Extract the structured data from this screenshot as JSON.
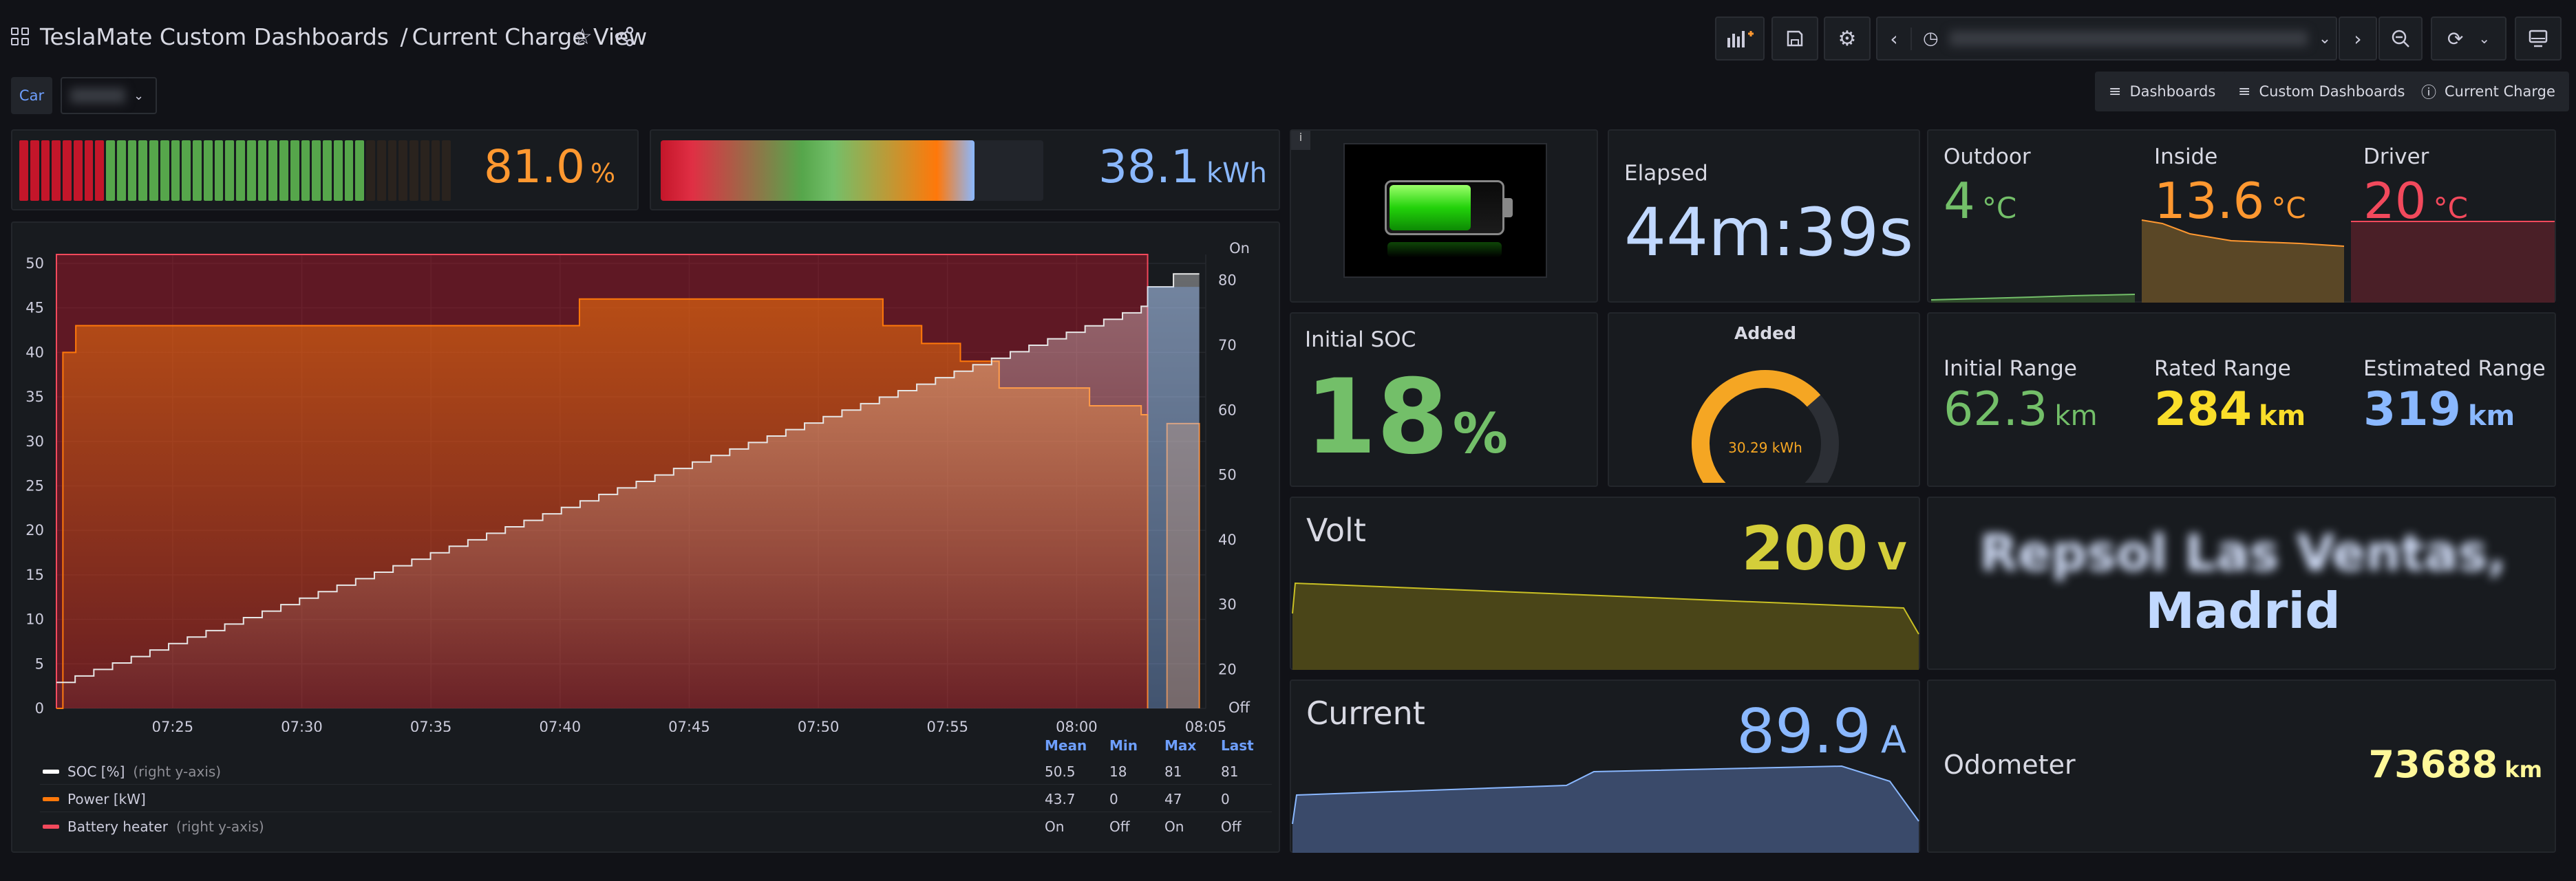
{
  "header": {
    "breadcrumb_root": "TeslaMate Custom Dashboards",
    "breadcrumb_sep": "/",
    "title": "Current Charge View",
    "time_range": "Last 12 hours"
  },
  "variables": {
    "car_label": "Car",
    "car_value": "Tesla"
  },
  "nav_links": [
    {
      "label": "Dashboards"
    },
    {
      "label": "Custom Dashboards"
    },
    {
      "label": "Current Charge"
    }
  ],
  "battery_gauge": {
    "value": "81.0",
    "unit": "%",
    "level_fraction": 0.81
  },
  "energy_gauge": {
    "value": "38.1",
    "unit": "kWh",
    "level_fraction": 0.82
  },
  "elapsed": {
    "title": "Elapsed",
    "value": "44m:39s"
  },
  "temps": [
    {
      "title": "Outdoor",
      "value": "4",
      "unit": "°C",
      "color": "#73bf69"
    },
    {
      "title": "Inside",
      "value": "13.6",
      "unit": "°C",
      "color": "#ff9830"
    },
    {
      "title": "Driver",
      "value": "20",
      "unit": "°C",
      "color": "#f2495c"
    }
  ],
  "initial_soc": {
    "title": "Initial SOC",
    "value": "18",
    "unit": "%"
  },
  "added": {
    "title": "Added",
    "value": "30.29 kWh",
    "fraction": 0.68
  },
  "ranges": [
    {
      "title": "Initial Range",
      "value": "62.3",
      "unit": "km",
      "color": "#73bf69"
    },
    {
      "title": "Rated Range",
      "value": "284",
      "unit": "km",
      "color": "#fade2a"
    },
    {
      "title": "Estimated Range",
      "value": "319",
      "unit": "km",
      "color": "#8ab8ff"
    }
  ],
  "volt": {
    "title": "Volt",
    "value": "200",
    "unit": "V"
  },
  "current": {
    "title": "Current",
    "value": "89.9",
    "unit": "A"
  },
  "location": {
    "line1": "Repsol Las Ventas,",
    "line2": "Madrid"
  },
  "odometer": {
    "title": "Odometer",
    "value": "73688",
    "unit": "km"
  },
  "chart_data": {
    "type": "line",
    "x_ticks": [
      "07:25",
      "07:30",
      "07:35",
      "07:40",
      "07:45",
      "07:50",
      "07:55",
      "08:00",
      "08:05"
    ],
    "left_axis": {
      "ticks": [
        0,
        5,
        10,
        15,
        20,
        25,
        30,
        35,
        40,
        45,
        50
      ],
      "range": [
        0,
        51
      ]
    },
    "right_axis": {
      "ticks": [
        20,
        30,
        40,
        50,
        60,
        70,
        80
      ],
      "top_label": "On",
      "bottom_label": "Off"
    },
    "series": [
      {
        "name": "SOC [%]",
        "suffix": "(right y-axis)",
        "color": "#ffffff",
        "mean": "50.5",
        "min": "18",
        "max": "81",
        "last": "81"
      },
      {
        "name": "Power [kW]",
        "suffix": "",
        "color": "#ff780a",
        "mean": "43.7",
        "min": "0",
        "max": "47",
        "last": "0"
      },
      {
        "name": "Battery heater",
        "suffix": "(right y-axis)",
        "color": "#f2495c",
        "mean": "On",
        "min": "Off",
        "max": "On",
        "last": "Off"
      }
    ],
    "legend_headers": [
      "Mean",
      "Min",
      "Max",
      "Last"
    ],
    "power_points": [
      [
        0,
        0
      ],
      [
        0.5,
        40
      ],
      [
        1.5,
        43
      ],
      [
        38,
        43
      ],
      [
        40,
        43
      ],
      [
        40.5,
        46
      ],
      [
        60,
        46
      ],
      [
        64,
        43
      ],
      [
        67,
        41
      ],
      [
        70,
        39
      ],
      [
        73,
        36
      ],
      [
        80,
        34
      ],
      [
        84,
        33
      ],
      [
        84.5,
        0
      ]
    ],
    "soc_points": [
      [
        0,
        18
      ],
      [
        84,
        76
      ],
      [
        84.5,
        79
      ],
      [
        86,
        79
      ],
      [
        87,
        81
      ],
      [
        88.5,
        81
      ]
    ],
    "heater_on_range": [
      0,
      84.5
    ]
  }
}
